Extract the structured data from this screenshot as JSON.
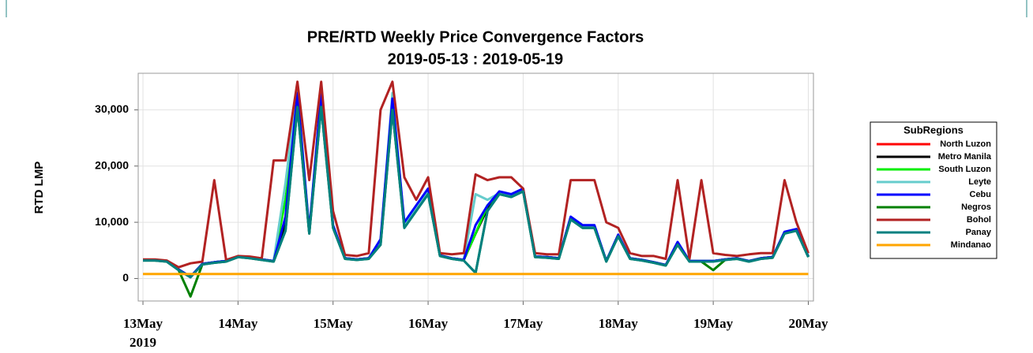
{
  "chart_data": {
    "type": "line",
    "title": "PRE/RTD Weekly Price Convergence Factors",
    "subtitle": "2019-05-13 : 2019-05-19",
    "y_label": "RTD LMP",
    "x_year_label": "2019",
    "legend_title": "SubRegions",
    "legend": "right",
    "grid": true,
    "xlim": [
      -1.2,
      169.3
    ],
    "xticks": [
      {
        "value": 0,
        "label": "13May"
      },
      {
        "value": 24,
        "label": "14May"
      },
      {
        "value": 48,
        "label": "15May"
      },
      {
        "value": 72,
        "label": "16May"
      },
      {
        "value": 96,
        "label": "17May"
      },
      {
        "value": 120,
        "label": "18May"
      },
      {
        "value": 144,
        "label": "19May"
      },
      {
        "value": 168,
        "label": "20May"
      }
    ],
    "ylim": [
      -4000,
      36500
    ],
    "yticks": [
      0,
      {
        "value": 10000,
        "label": "10,000"
      },
      {
        "value": 20000,
        "label": "20,000"
      },
      {
        "value": 30000,
        "label": "30,000"
      }
    ],
    "x": [
      0,
      3,
      6,
      9,
      12,
      15,
      18,
      21,
      24,
      27,
      30,
      33,
      36,
      39,
      42,
      45,
      48,
      51,
      54,
      57,
      60,
      63,
      66,
      69,
      72,
      75,
      78,
      81,
      84,
      87,
      90,
      93,
      96,
      99,
      102,
      105,
      108,
      111,
      114,
      117,
      120,
      123,
      126,
      129,
      132,
      135,
      138,
      141,
      144,
      147,
      150,
      153,
      156,
      159,
      162,
      165,
      168
    ],
    "series": [
      {
        "name": "North Luzon",
        "color": "#ff0000",
        "values": [
          3300,
          3300,
          3100,
          1600,
          300,
          2600,
          2900,
          3100,
          3900,
          3700,
          3400,
          3100,
          10000,
          32000,
          8200,
          32000,
          9200,
          3600,
          3400,
          3600,
          6500,
          31000,
          9500,
          12500,
          15500,
          4100,
          3600,
          3300,
          8000,
          12500,
          15200,
          14800,
          15800,
          3900,
          3800,
          3600,
          10800,
          9200,
          9200,
          3100,
          7700,
          3600,
          3300,
          2900,
          2400,
          6200,
          3100,
          3100,
          3100,
          3400,
          3600,
          3100,
          3600,
          3800,
          8200,
          8700,
          3900
        ]
      },
      {
        "name": "Metro Manila",
        "color": "#000000",
        "values": [
          3300,
          3300,
          3100,
          1600,
          300,
          2600,
          2900,
          3100,
          3900,
          3700,
          3400,
          3100,
          10000,
          32000,
          8200,
          32000,
          9200,
          3600,
          3400,
          3600,
          6500,
          31000,
          9500,
          12500,
          15500,
          4100,
          3600,
          3300,
          8000,
          12500,
          15200,
          14800,
          15800,
          3900,
          3800,
          3600,
          10800,
          9200,
          9200,
          3100,
          7700,
          3600,
          3300,
          2900,
          2400,
          6200,
          3100,
          3100,
          3100,
          3400,
          3600,
          3100,
          3600,
          3800,
          8200,
          8700,
          3900
        ]
      },
      {
        "name": "South Luzon",
        "color": "#00ee00",
        "values": [
          3300,
          3300,
          3100,
          1600,
          300,
          2600,
          2900,
          3100,
          3900,
          3700,
          3400,
          3100,
          14000,
          31000,
          8200,
          31500,
          9200,
          3600,
          3400,
          3600,
          6500,
          31500,
          9500,
          12500,
          15500,
          4100,
          3600,
          3300,
          8000,
          13000,
          15200,
          14800,
          15800,
          3900,
          3800,
          3600,
          10800,
          9200,
          9200,
          3100,
          7700,
          3600,
          3300,
          2900,
          2400,
          6200,
          3100,
          3100,
          3100,
          3400,
          3600,
          3100,
          3600,
          3800,
          8200,
          8700,
          3900
        ]
      },
      {
        "name": "Leyte",
        "color": "#66cccc",
        "values": [
          3300,
          3300,
          3100,
          1600,
          300,
          2600,
          2900,
          3100,
          3900,
          3700,
          3400,
          3100,
          17000,
          34000,
          8200,
          33000,
          9200,
          3600,
          3400,
          3600,
          6500,
          33000,
          9500,
          12500,
          15500,
          4100,
          3600,
          3300,
          15000,
          14000,
          15200,
          14800,
          15800,
          3900,
          3800,
          3600,
          10800,
          9200,
          9200,
          3100,
          7700,
          3600,
          3300,
          2900,
          2400,
          6200,
          3100,
          3100,
          3100,
          3400,
          3600,
          3100,
          3600,
          3800,
          8200,
          8700,
          3900
        ]
      },
      {
        "name": "Cebu",
        "color": "#0000ff",
        "values": [
          3300,
          3300,
          3100,
          1600,
          300,
          2600,
          2900,
          3100,
          3900,
          3700,
          3400,
          3100,
          11000,
          33000,
          8500,
          33000,
          9500,
          3600,
          3400,
          3600,
          7000,
          32000,
          10000,
          13000,
          16000,
          4100,
          3600,
          3300,
          9500,
          13000,
          15500,
          15000,
          16000,
          3900,
          3800,
          3600,
          11000,
          9500,
          9500,
          3100,
          7800,
          3600,
          3300,
          2900,
          2400,
          6500,
          3100,
          3100,
          3100,
          3400,
          3600,
          3100,
          3600,
          3800,
          8300,
          8800,
          3900
        ]
      },
      {
        "name": "Negros",
        "color": "#008000",
        "values": [
          3200,
          3200,
          3000,
          1500,
          -3200,
          2500,
          2800,
          3000,
          3800,
          3600,
          3300,
          3000,
          8500,
          30500,
          8000,
          30500,
          9000,
          3500,
          3300,
          3500,
          6000,
          30000,
          9000,
          12000,
          15000,
          4000,
          3500,
          3200,
          1000,
          12000,
          15000,
          14500,
          15500,
          3800,
          3700,
          3500,
          10500,
          9000,
          9000,
          3000,
          7500,
          3500,
          3200,
          2800,
          2300,
          6000,
          3000,
          3000,
          1500,
          3300,
          3500,
          3000,
          3500,
          3700,
          8000,
          8500,
          3800
        ]
      },
      {
        "name": "Bohol",
        "color": "#b22222",
        "values": [
          3400,
          3400,
          3200,
          2000,
          2700,
          3000,
          17500,
          3300,
          4000,
          3900,
          3600,
          21000,
          21000,
          35000,
          17500,
          35000,
          12000,
          4200,
          4000,
          4500,
          30000,
          35000,
          18000,
          14000,
          18000,
          4500,
          4300,
          4500,
          18500,
          17500,
          18000,
          18000,
          16000,
          4500,
          4300,
          4300,
          17500,
          17500,
          17500,
          10000,
          9000,
          4500,
          4000,
          4000,
          3500,
          17500,
          3500,
          17500,
          4500,
          4200,
          4000,
          4300,
          4500,
          4500,
          17500,
          10000,
          4500
        ]
      },
      {
        "name": "Panay",
        "color": "#008080",
        "values": [
          3200,
          3200,
          3000,
          1500,
          200,
          2500,
          2800,
          3000,
          3800,
          3600,
          3300,
          3000,
          8500,
          30500,
          8000,
          30500,
          9000,
          3500,
          3300,
          3500,
          6000,
          30000,
          9000,
          12000,
          15000,
          4000,
          3500,
          3200,
          1000,
          12000,
          15000,
          14500,
          15500,
          3800,
          3700,
          3500,
          10500,
          9000,
          9000,
          3000,
          7500,
          3500,
          3200,
          2800,
          2300,
          6000,
          3000,
          3000,
          3000,
          3300,
          3500,
          3000,
          3500,
          3700,
          8000,
          8500,
          3800
        ]
      },
      {
        "name": "Mindanao",
        "color": "#ffa500",
        "values": [
          800,
          800,
          800,
          800,
          800,
          800,
          800,
          800,
          800,
          800,
          800,
          800,
          800,
          800,
          800,
          800,
          800,
          800,
          800,
          800,
          800,
          800,
          800,
          800,
          800,
          800,
          800,
          800,
          800,
          800,
          800,
          800,
          800,
          800,
          800,
          800,
          800,
          800,
          800,
          800,
          800,
          800,
          800,
          800,
          800,
          800,
          800,
          800,
          800,
          800,
          800,
          800,
          800,
          800,
          800,
          800,
          800
        ]
      }
    ]
  }
}
